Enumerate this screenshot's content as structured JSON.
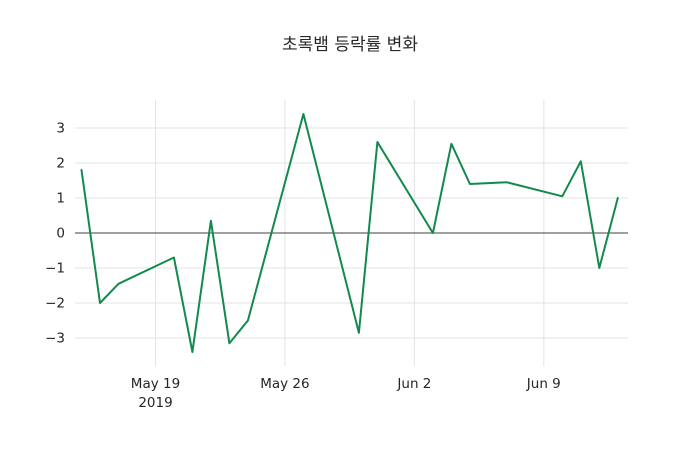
{
  "title": "초록뱀 등락률 변화",
  "colors": {
    "line": "#138a4d",
    "grid": "#e3e3e3",
    "zero_line": "#404040",
    "text": "#262626",
    "background": "#ffffff"
  },
  "chart_data": {
    "type": "line",
    "title": "초록뱀 등락률 변화",
    "xlabel": "",
    "ylabel": "",
    "legend": "none",
    "grid": "on",
    "ylim": [
      -3.8,
      3.8
    ],
    "y_ticks": [
      3,
      2,
      1,
      0,
      -1,
      -2,
      -3
    ],
    "x_ticks": [
      {
        "date": "2019-05-19",
        "label": "May 19",
        "sublabel": "2019"
      },
      {
        "date": "2019-05-26",
        "label": "May 26",
        "sublabel": ""
      },
      {
        "date": "2019-06-02",
        "label": "Jun 2",
        "sublabel": ""
      },
      {
        "date": "2019-06-09",
        "label": "Jun 9",
        "sublabel": ""
      }
    ],
    "points": [
      {
        "date": "2019-05-15",
        "value": 1.8
      },
      {
        "date": "2019-05-16",
        "value": -2.0
      },
      {
        "date": "2019-05-17",
        "value": -1.45
      },
      {
        "date": "2019-05-20",
        "value": -0.7
      },
      {
        "date": "2019-05-21",
        "value": -3.4
      },
      {
        "date": "2019-05-22",
        "value": 0.35
      },
      {
        "date": "2019-05-23",
        "value": -3.15
      },
      {
        "date": "2019-05-24",
        "value": -2.5
      },
      {
        "date": "2019-05-27",
        "value": 3.4
      },
      {
        "date": "2019-05-30",
        "value": -2.85
      },
      {
        "date": "2019-05-31",
        "value": 2.6
      },
      {
        "date": "2019-06-03",
        "value": 0.0
      },
      {
        "date": "2019-06-04",
        "value": 2.55
      },
      {
        "date": "2019-06-05",
        "value": 1.4
      },
      {
        "date": "2019-06-07",
        "value": 1.45
      },
      {
        "date": "2019-06-10",
        "value": 1.05
      },
      {
        "date": "2019-06-11",
        "value": 2.05
      },
      {
        "date": "2019-06-12",
        "value": -1.0
      },
      {
        "date": "2019-06-13",
        "value": 1.0
      }
    ]
  }
}
